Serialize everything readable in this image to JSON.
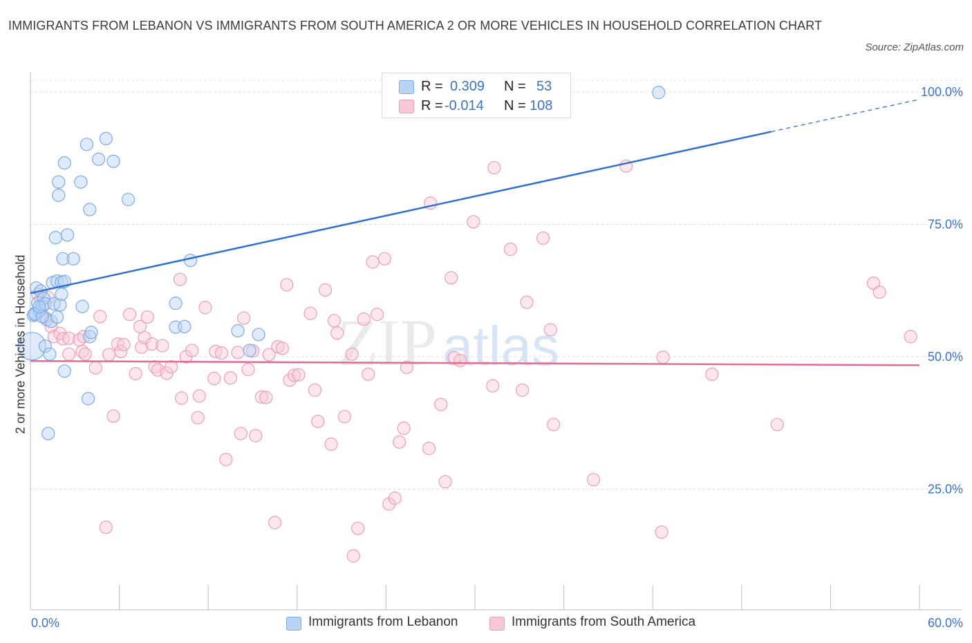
{
  "title": "IMMIGRANTS FROM LEBANON VS IMMIGRANTS FROM SOUTH AMERICA 2 OR MORE VEHICLES IN HOUSEHOLD CORRELATION CHART",
  "source": "Source: ZipAtlas.com",
  "watermark": {
    "zip": "ZIP",
    "atlas": "atlas"
  },
  "chart_data": {
    "type": "scatter",
    "xlabel": "",
    "ylabel": "2 or more Vehicles in Household",
    "xlim": [
      0,
      60
    ],
    "ylim": [
      0,
      100
    ],
    "x_tick_labels": {
      "min": "0.0%",
      "max": "60.0%"
    },
    "y_tick_labels": [
      "25.0%",
      "50.0%",
      "75.0%",
      "100.0%"
    ],
    "y_ticks": [
      25,
      50,
      75,
      100
    ],
    "grid": true,
    "legend_placement": "top-center",
    "series": [
      {
        "name": "Immigrants from Lebanon",
        "color": "#7aaae8",
        "fill": "#b9d3f5",
        "line_color": "#2f6fd0",
        "stats": {
          "r_label": "R =",
          "r": "0.309",
          "n_label": "N =",
          "n": "53"
        },
        "trend": {
          "x0": 0.0,
          "y0": 62.0,
          "x1": 50.0,
          "y1": 92.5,
          "dash_to_x": 60.0,
          "dash_to_y": 98.6
        },
        "points": [
          [
            0.1,
            52.0
          ],
          [
            0.2,
            57.8
          ],
          [
            0.3,
            58.2
          ],
          [
            0.4,
            63.0
          ],
          [
            0.5,
            60.2
          ],
          [
            0.6,
            58.6
          ],
          [
            0.7,
            62.4
          ],
          [
            0.8,
            59.5
          ],
          [
            0.9,
            61.0
          ],
          [
            1.0,
            60.0
          ],
          [
            1.0,
            52.0
          ],
          [
            1.1,
            57.0
          ],
          [
            1.2,
            35.5
          ],
          [
            1.3,
            50.5
          ],
          [
            1.4,
            56.7
          ],
          [
            1.5,
            64.0
          ],
          [
            1.6,
            60.0
          ],
          [
            1.7,
            72.5
          ],
          [
            1.8,
            64.3
          ],
          [
            1.8,
            57.5
          ],
          [
            1.9,
            80.5
          ],
          [
            1.9,
            83.0
          ],
          [
            2.0,
            59.8
          ],
          [
            2.1,
            64.1
          ],
          [
            2.1,
            61.8
          ],
          [
            2.2,
            68.5
          ],
          [
            2.3,
            47.3
          ],
          [
            2.3,
            64.2
          ],
          [
            2.3,
            86.6
          ],
          [
            2.5,
            73.0
          ],
          [
            2.9,
            68.5
          ],
          [
            3.4,
            83.0
          ],
          [
            3.5,
            59.5
          ],
          [
            3.9,
            42.1
          ],
          [
            4.0,
            53.8
          ],
          [
            4.0,
            77.8
          ],
          [
            4.1,
            54.6
          ],
          [
            3.8,
            90.1
          ],
          [
            4.6,
            87.3
          ],
          [
            5.1,
            91.2
          ],
          [
            5.6,
            86.9
          ],
          [
            6.6,
            79.7
          ],
          [
            9.8,
            60.1
          ],
          [
            9.8,
            55.6
          ],
          [
            10.4,
            55.7
          ],
          [
            10.8,
            68.2
          ],
          [
            14.0,
            54.9
          ],
          [
            14.8,
            51.2
          ],
          [
            15.4,
            54.2
          ],
          [
            42.4,
            99.9
          ],
          [
            0.3,
            58.0
          ],
          [
            0.8,
            57.6
          ],
          [
            0.6,
            59.4
          ]
        ]
      },
      {
        "name": "Immigrants from South America",
        "color": "#ee9cb6",
        "fill": "#f7c9d7",
        "line_color": "#e26a93",
        "stats": {
          "r_label": "R =",
          "r": "-0.014",
          "n_label": "N =",
          "n": "108"
        },
        "trend": {
          "x0": 0.0,
          "y0": 49.2,
          "x1": 60.0,
          "y1": 48.4
        },
        "points": [
          [
            0.5,
            61.8
          ],
          [
            0.7,
            60.5
          ],
          [
            1.0,
            57.4
          ],
          [
            1.2,
            61.2
          ],
          [
            1.4,
            55.7
          ],
          [
            1.6,
            53.8
          ],
          [
            2.0,
            54.4
          ],
          [
            2.2,
            53.4
          ],
          [
            2.6,
            53.5
          ],
          [
            2.6,
            50.5
          ],
          [
            3.3,
            53.2
          ],
          [
            3.5,
            51.0
          ],
          [
            3.6,
            53.8
          ],
          [
            3.7,
            50.5
          ],
          [
            4.4,
            47.9
          ],
          [
            4.7,
            57.6
          ],
          [
            5.1,
            17.8
          ],
          [
            5.3,
            50.4
          ],
          [
            5.6,
            38.8
          ],
          [
            5.9,
            52.4
          ],
          [
            6.1,
            51.0
          ],
          [
            6.3,
            52.3
          ],
          [
            6.7,
            58.0
          ],
          [
            7.1,
            46.8
          ],
          [
            7.4,
            55.7
          ],
          [
            7.5,
            51.8
          ],
          [
            7.7,
            53.6
          ],
          [
            7.9,
            57.5
          ],
          [
            8.2,
            52.4
          ],
          [
            8.4,
            48.1
          ],
          [
            8.6,
            47.5
          ],
          [
            8.9,
            52.1
          ],
          [
            9.2,
            46.9
          ],
          [
            9.5,
            48.1
          ],
          [
            10.1,
            64.6
          ],
          [
            10.2,
            42.2
          ],
          [
            10.5,
            50.0
          ],
          [
            10.9,
            51.2
          ],
          [
            11.3,
            38.5
          ],
          [
            11.4,
            42.6
          ],
          [
            11.8,
            59.3
          ],
          [
            12.4,
            45.9
          ],
          [
            12.5,
            51.0
          ],
          [
            12.9,
            50.7
          ],
          [
            13.2,
            30.6
          ],
          [
            13.5,
            46.0
          ],
          [
            14.0,
            50.8
          ],
          [
            14.2,
            35.5
          ],
          [
            14.4,
            57.3
          ],
          [
            14.7,
            47.6
          ],
          [
            15.0,
            51.1
          ],
          [
            15.2,
            35.1
          ],
          [
            15.6,
            42.4
          ],
          [
            15.9,
            42.3
          ],
          [
            16.1,
            50.4
          ],
          [
            16.5,
            18.7
          ],
          [
            16.7,
            51.9
          ],
          [
            17.0,
            51.6
          ],
          [
            17.3,
            63.6
          ],
          [
            17.5,
            45.6
          ],
          [
            17.8,
            46.5
          ],
          [
            18.1,
            46.6
          ],
          [
            18.9,
            58.2
          ],
          [
            19.2,
            43.7
          ],
          [
            19.4,
            37.8
          ],
          [
            19.9,
            62.6
          ],
          [
            20.3,
            33.5
          ],
          [
            20.5,
            56.8
          ],
          [
            20.7,
            54.5
          ],
          [
            21.2,
            38.7
          ],
          [
            21.7,
            50.5
          ],
          [
            22.1,
            17.6
          ],
          [
            22.5,
            57.1
          ],
          [
            22.8,
            46.7
          ],
          [
            23.1,
            67.9
          ],
          [
            23.4,
            58.0
          ],
          [
            23.9,
            68.5
          ],
          [
            24.2,
            22.2
          ],
          [
            24.6,
            23.3
          ],
          [
            24.9,
            33.9
          ],
          [
            25.2,
            36.5
          ],
          [
            25.4,
            48.0
          ],
          [
            26.9,
            32.7
          ],
          [
            27.0,
            79.0
          ],
          [
            27.7,
            41.0
          ],
          [
            28.0,
            26.4
          ],
          [
            28.4,
            64.9
          ],
          [
            28.6,
            49.8
          ],
          [
            29.0,
            49.3
          ],
          [
            29.9,
            75.5
          ],
          [
            21.8,
            12.4
          ],
          [
            31.2,
            44.5
          ],
          [
            31.3,
            85.7
          ],
          [
            32.4,
            70.3
          ],
          [
            33.2,
            43.7
          ],
          [
            33.5,
            60.3
          ],
          [
            34.6,
            72.4
          ],
          [
            35.1,
            55.1
          ],
          [
            35.3,
            37.2
          ],
          [
            38.0,
            26.8
          ],
          [
            40.2,
            86.0
          ],
          [
            42.6,
            16.9
          ],
          [
            42.7,
            49.9
          ],
          [
            46.0,
            46.7
          ],
          [
            50.4,
            37.2
          ],
          [
            59.4,
            53.8
          ],
          [
            56.9,
            63.9
          ],
          [
            57.3,
            62.2
          ]
        ]
      }
    ]
  }
}
